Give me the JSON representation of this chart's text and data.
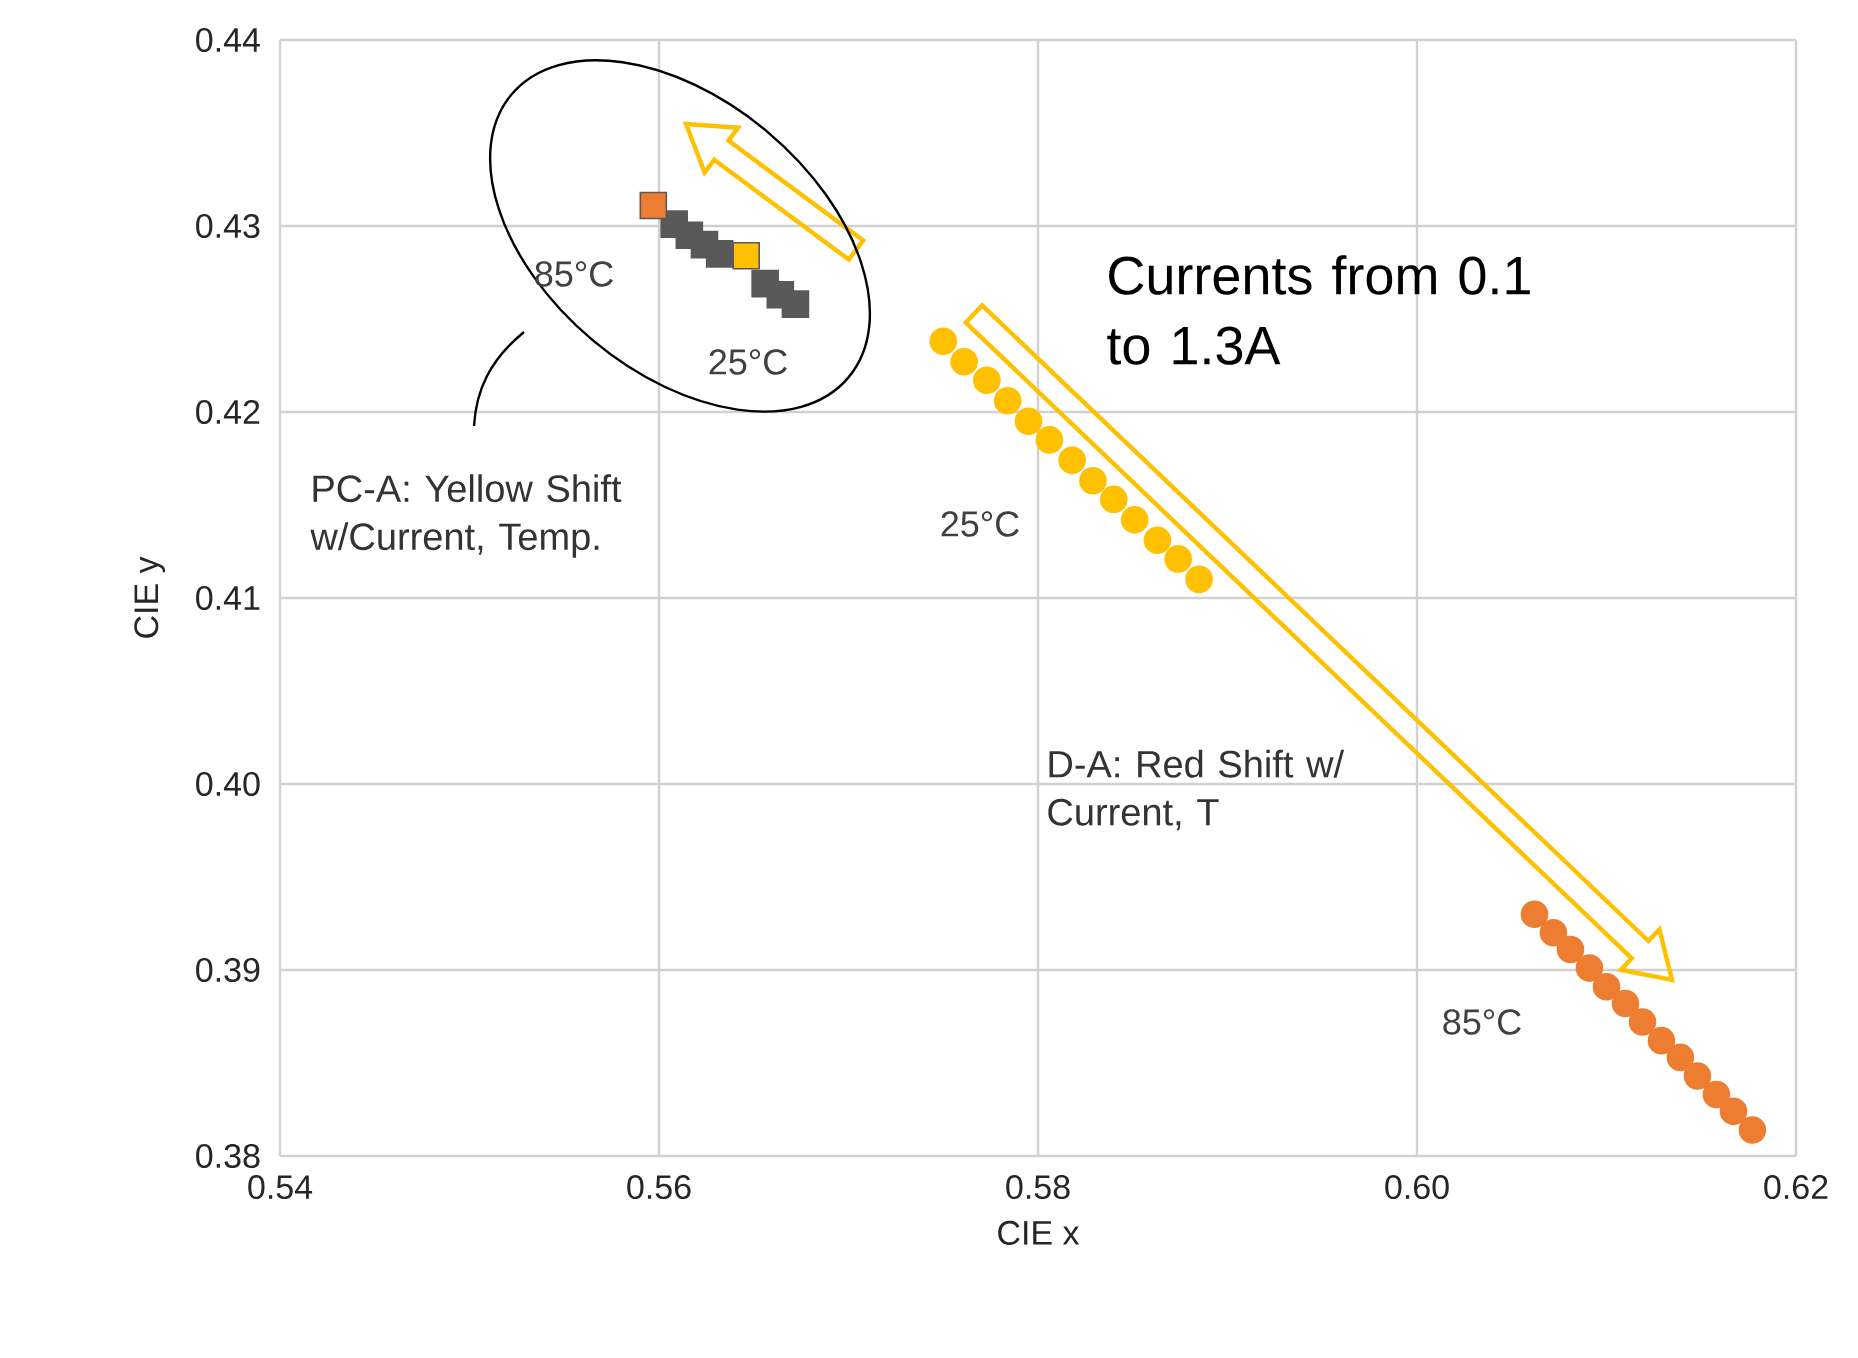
{
  "chart_data": {
    "type": "scatter",
    "xlabel": "CIE x",
    "ylabel": "CIE y",
    "xlim": [
      0.54,
      0.62
    ],
    "xticks": [
      0.54,
      0.56,
      0.58,
      {
        "value": 0.6,
        "label": "0.60"
      },
      0.62
    ],
    "ylim": [
      0.38,
      0.44
    ],
    "yticks": [
      0.38,
      0.39,
      {
        "value": 0.4,
        "label": "0.40"
      },
      0.41,
      0.42,
      0.43,
      0.44
    ],
    "grid": true,
    "series": [
      {
        "color": "#595959",
        "marker": "square",
        "x": [
          0.5608,
          0.5616,
          0.5624,
          0.5632,
          0.5656,
          0.5664,
          0.5672
        ],
        "values": [
          0.4301,
          0.4295,
          0.429,
          0.4285,
          0.4269,
          0.4263,
          0.4258
        ]
      },
      {
        "color": "#ed7d31",
        "marker": "square",
        "x": [
          0.5597
        ],
        "values": [
          0.4311
        ]
      },
      {
        "color": "#ffc000",
        "marker": "square",
        "x": [
          0.5646
        ],
        "values": [
          0.4284
        ]
      },
      {
        "color": "#ffc000",
        "marker": "circle",
        "x": [
          0.575,
          0.5761,
          0.5773,
          0.5784,
          0.5795,
          0.5806,
          0.5818,
          0.5829,
          0.584,
          0.5851,
          0.5863,
          0.5874,
          0.5885
        ],
        "values": [
          0.4238,
          0.4227,
          0.4217,
          0.4206,
          0.4195,
          0.4185,
          0.4174,
          0.4163,
          0.4153,
          0.4142,
          0.4131,
          0.4121,
          0.411
        ]
      },
      {
        "color": "#ed7d31",
        "marker": "circle",
        "x": [
          0.6062,
          0.6072,
          0.6081,
          0.6091,
          0.61,
          0.611,
          0.6119,
          0.6129,
          0.6139,
          0.6148,
          0.6158,
          0.6167,
          0.6177
        ],
        "values": [
          0.393,
          0.392,
          0.3911,
          0.3901,
          0.3891,
          0.3882,
          0.3872,
          0.3862,
          0.3853,
          0.3843,
          0.3833,
          0.3824,
          0.3814
        ]
      }
    ],
    "annotations": [
      "Currents from 0.1 to 1.3A",
      "PC-A: Yellow Shift w/Current, Temp.",
      "D-A: Red Shift w/ Current, T",
      "85°C",
      "25°C",
      "25°C",
      "85°C"
    ]
  }
}
